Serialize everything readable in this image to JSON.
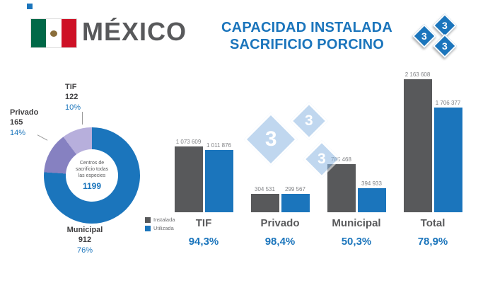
{
  "colors": {
    "brand_blue": "#1b75bc",
    "dark_gray": "#58595b",
    "watermark_blue": "#8db8e2",
    "tif_slice": "#b7afdc",
    "privado_slice": "#8681c1",
    "municipal_slice": "#1b75bc"
  },
  "header": {
    "country": "MÉXICO",
    "title_line1": "CAPACIDAD INSTALADA",
    "title_line2": "SACRIFICIO PORCINO"
  },
  "logo": {
    "digits": [
      "3",
      "3",
      "3"
    ]
  },
  "watermark": {
    "digit": "3"
  },
  "chart_data": [
    {
      "type": "pie",
      "title": "Centros de sacrificio todas las especies",
      "center_lines": [
        "Centros de",
        "sacrificio todas",
        "las especies"
      ],
      "total": "1199",
      "slices": [
        {
          "label": "TIF",
          "value": 122,
          "pct": "10%",
          "color": "#b7afdc"
        },
        {
          "label": "Privado",
          "value": 165,
          "pct": "14%",
          "color": "#8681c1"
        },
        {
          "label": "Municipal",
          "value": 912,
          "pct": "76%",
          "color": "#1b75bc"
        }
      ]
    },
    {
      "type": "bar",
      "categories": [
        "TIF",
        "Privado",
        "Municipal",
        "Total"
      ],
      "series": [
        {
          "name": "Instalada",
          "color": "#58595b",
          "values": [
            1073609,
            304531,
            785468,
            2163608
          ]
        },
        {
          "name": "Utilizada",
          "color": "#1b75bc",
          "values": [
            1011876,
            299567,
            394933,
            1706377
          ]
        }
      ],
      "value_labels": [
        [
          "1 073 609",
          "1 011 876"
        ],
        [
          "304 531",
          "299 567"
        ],
        [
          "785 468",
          "394 933"
        ],
        [
          "2 163 608",
          "1 706 377"
        ]
      ],
      "percentages": [
        "94,3%",
        "98,4%",
        "50,3%",
        "78,9%"
      ],
      "ylim": [
        0,
        2163608
      ],
      "grid": false,
      "legend_position": "bottom-left"
    }
  ]
}
